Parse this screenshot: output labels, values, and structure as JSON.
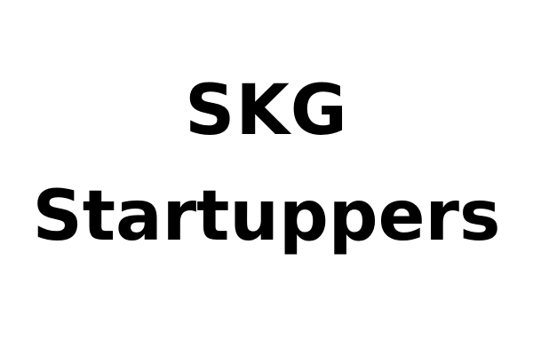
{
  "title": {
    "line1": "SKG",
    "line2": "Startuppers"
  },
  "colors": {
    "background": "#ffffff",
    "text": "#000000"
  }
}
